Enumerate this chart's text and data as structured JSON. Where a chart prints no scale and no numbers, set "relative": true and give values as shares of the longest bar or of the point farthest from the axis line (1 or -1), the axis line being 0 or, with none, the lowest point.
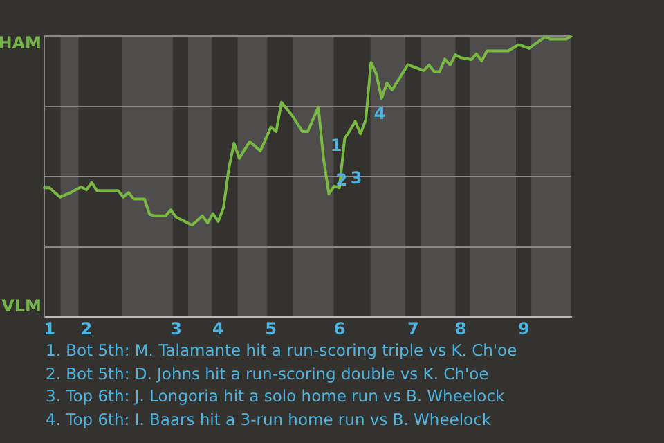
{
  "chart_data": {
    "type": "line",
    "relative": true,
    "categories": [
      null,
      "1",
      null,
      null,
      null,
      null,
      null,
      null,
      "2",
      null,
      null,
      null,
      null,
      null,
      null,
      null,
      null,
      null,
      null,
      null,
      null,
      null,
      null,
      null,
      null,
      "3",
      null,
      null,
      null,
      null,
      null,
      null,
      null,
      "4",
      null,
      null,
      null,
      null,
      null,
      null,
      null,
      null,
      null,
      "5",
      null,
      null,
      null,
      null,
      null,
      null,
      null,
      null,
      null,
      null,
      null,
      null,
      "6",
      null,
      null,
      null,
      null,
      null,
      null,
      null,
      null,
      null,
      null,
      null,
      null,
      null,
      "7",
      null,
      null,
      null,
      null,
      null,
      null,
      null,
      null,
      "8",
      null,
      null,
      null,
      null,
      null,
      null,
      null,
      null,
      null,
      null,
      null,
      "9",
      null,
      null,
      null,
      null,
      null,
      null,
      null,
      null,
      null
    ],
    "series": [
      {
        "color": "#79b943",
        "values": [
          0.46,
          0.46,
          0.443,
          0.427,
          0.435,
          0.443,
          0.453,
          0.463,
          0.453,
          0.479,
          0.45,
          0.45,
          0.45,
          0.45,
          0.45,
          0.427,
          0.443,
          0.42,
          0.42,
          0.42,
          0.365,
          0.36,
          0.36,
          0.36,
          0.381,
          0.356,
          0.346,
          0.337,
          0.327,
          0.343,
          0.36,
          0.335,
          0.368,
          0.34,
          0.389,
          0.526,
          0.619,
          0.565,
          0.595,
          0.624,
          0.608,
          0.591,
          0.633,
          0.676,
          0.66,
          0.764,
          0.741,
          0.718,
          0.689,
          0.66,
          0.66,
          0.704,
          0.747,
          0.562,
          0.438,
          0.466,
          0.46,
          0.635,
          0.664,
          0.696,
          0.652,
          0.701,
          0.906,
          0.865,
          0.778,
          0.833,
          0.808,
          0.838,
          0.868,
          0.898,
          0.891,
          0.884,
          0.877,
          0.897,
          0.873,
          0.873,
          0.918,
          0.897,
          0.933,
          0.923,
          0.92,
          0.916,
          0.936,
          0.911,
          0.947,
          0.947,
          0.947,
          0.947,
          0.947,
          0.958,
          0.969,
          0.963,
          0.956,
          0.97,
          0.983,
          0.997,
          0.989,
          0.989,
          0.989,
          0.989,
          1
        ]
      }
    ],
    "grid": "y",
    "legend": false,
    "marker": "none",
    "line_style": "solid",
    "annotations": [
      "HAM",
      "VLM",
      "1",
      "2",
      "3",
      "4",
      "1. Bot 5th: M. Talamante hit a run-scoring triple vs K. Ch'oe",
      "2. Bot 5th: D. Johns hit a run-scoring double vs K. Ch'oe",
      "3. Top 6th: J. Longoria hit a solo home run vs B. Wheelock",
      "4. Top 6th: I. Baars hit a 3-run home run vs B. Wheelock"
    ]
  }
}
